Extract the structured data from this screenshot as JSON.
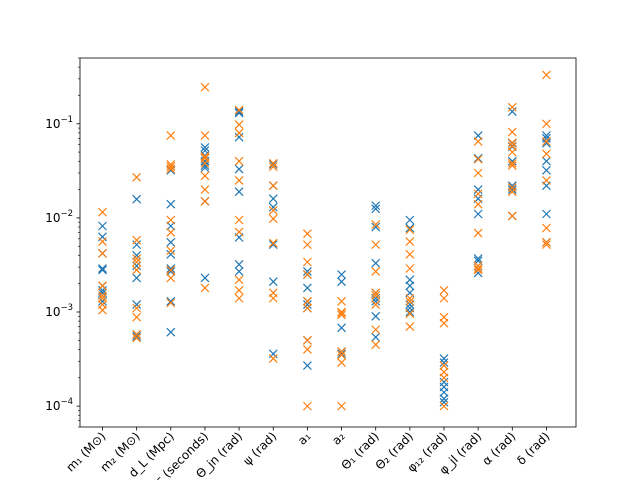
{
  "chart_data": {
    "type": "scatter",
    "title": "",
    "xlabel": "",
    "ylabel": "",
    "yscale": "log",
    "ylim": [
      6e-05,
      0.5
    ],
    "yticks": [
      {
        "value": 0.0001,
        "base": "10",
        "exp": "−4"
      },
      {
        "value": 0.001,
        "base": "10",
        "exp": "−3"
      },
      {
        "value": 0.01,
        "base": "10",
        "exp": "−2"
      },
      {
        "value": 0.1,
        "base": "10",
        "exp": "−1"
      }
    ],
    "categories": [
      "m₁ (M⊙)",
      "m₂ (M⊙)",
      "d_L (Mpc)",
      "t_c (seconds)",
      "Θ_jn (rad)",
      "ψ (rad)",
      "a₁",
      "a₂",
      "Θ₁ (rad)",
      "Θ₂ (rad)",
      "φ₁₂ (rad)",
      "φ_jl (rad)",
      "α (rad)",
      "δ (rad)"
    ],
    "grid": false,
    "legend": "none",
    "colors": {
      "series_a": "#1f77b4",
      "series_b": "#ff7f0e"
    },
    "marker": "x",
    "series": [
      {
        "values": [
          [
            0.0082,
            0.0063,
            0.0042,
            0.0029,
            0.0028,
            0.0019,
            0.0017,
            0.0016,
            0.0013
          ],
          [
            0.0158,
            0.0052,
            0.004,
            0.0031,
            0.0023,
            0.0012,
            0.00058,
            0.00055
          ],
          [
            0.032,
            0.014,
            0.0082,
            0.0055,
            0.0041,
            0.0029,
            0.0027,
            0.0013,
            0.00061
          ],
          [
            0.056,
            0.052,
            0.046,
            0.04,
            0.036,
            0.034,
            0.015,
            0.0023
          ],
          [
            0.135,
            0.13,
            0.072,
            0.033,
            0.019,
            0.0062,
            0.0032,
            0.0027
          ],
          [
            0.037,
            0.022,
            0.016,
            0.013,
            0.0052,
            0.0021,
            0.00036
          ],
          [
            0.0027,
            0.0025,
            0.0018,
            0.0013,
            0.0012,
            0.0011,
            0.0005,
            0.00027
          ],
          [
            0.0025,
            0.0021,
            0.00068,
            0.00038,
            0.00036
          ],
          [
            0.0135,
            0.0125,
            0.008,
            0.0033,
            0.0016,
            0.0014,
            0.0013,
            0.0009,
            0.00054
          ],
          [
            0.0095,
            0.0078,
            0.0022,
            0.0019,
            0.0016,
            0.0012,
            0.0011,
            0.001
          ],
          [
            0.00032,
            0.00029,
            0.00018,
            0.00016,
            0.00014,
            0.00012,
            0.00011
          ],
          [
            0.075,
            0.043,
            0.02,
            0.016,
            0.011,
            0.0037,
            0.0035,
            0.0026
          ],
          [
            0.135,
            0.062,
            0.057,
            0.04,
            0.022,
            0.02,
            0.0105
          ],
          [
            0.075,
            0.07,
            0.062,
            0.04,
            0.032,
            0.022,
            0.011,
            0.0055
          ]
        ]
      },
      {
        "values": [
          [
            0.0115,
            0.0056,
            0.0042,
            0.0019,
            0.0015,
            0.0014,
            0.0012,
            0.00105
          ],
          [
            0.027,
            0.0058,
            0.0037,
            0.0034,
            0.0028,
            0.0011,
            0.00088,
            0.00058,
            0.00053
          ],
          [
            0.075,
            0.037,
            0.035,
            0.033,
            0.0095,
            0.007,
            0.0045,
            0.0028,
            0.0023,
            0.00125
          ],
          [
            0.245,
            0.075,
            0.045,
            0.043,
            0.038,
            0.028,
            0.02,
            0.015,
            0.0018
          ],
          [
            0.14,
            0.098,
            0.08,
            0.04,
            0.025,
            0.0095,
            0.0071,
            0.0022,
            0.0017,
            0.0014
          ],
          [
            0.038,
            0.035,
            0.022,
            0.012,
            0.0098,
            0.0054,
            0.0016,
            0.0014,
            0.00032
          ],
          [
            0.0068,
            0.0052,
            0.0034,
            0.0025,
            0.0013,
            0.0011,
            0.0005,
            0.0004,
            0.0001
          ],
          [
            0.0013,
            0.001,
            0.00098,
            0.00093,
            0.00038,
            0.00035,
            0.00029,
            0.0001
          ],
          [
            0.0085,
            0.0052,
            0.0027,
            0.0016,
            0.0015,
            0.0012,
            0.00065,
            0.00045
          ],
          [
            0.0075,
            0.0056,
            0.0041,
            0.0029,
            0.0014,
            0.0013,
            0.00096,
            0.0007
          ],
          [
            0.0017,
            0.0014,
            0.00088,
            0.00076,
            0.00027,
            0.00023,
            0.0002,
            0.0001
          ],
          [
            0.065,
            0.042,
            0.03,
            0.018,
            0.014,
            0.0069,
            0.0031,
            0.0029,
            0.0028
          ],
          [
            0.15,
            0.082,
            0.063,
            0.058,
            0.05,
            0.038,
            0.036,
            0.021,
            0.019,
            0.0105
          ],
          [
            0.33,
            0.1,
            0.065,
            0.048,
            0.025,
            0.0078,
            0.0055,
            0.0052
          ]
        ]
      }
    ]
  }
}
